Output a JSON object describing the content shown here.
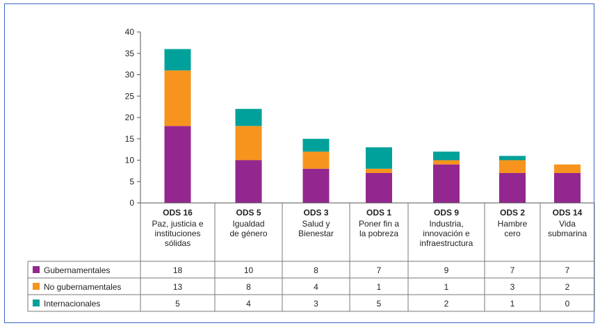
{
  "chart_data": {
    "type": "bar",
    "stacked": true,
    "ylim": [
      0,
      40
    ],
    "yticks": [
      0,
      5,
      10,
      15,
      20,
      25,
      30,
      35,
      40
    ],
    "categories": [
      {
        "code": "ODS 16",
        "name": [
          "Paz, justicia e",
          "instituciones",
          "sólidas"
        ]
      },
      {
        "code": "ODS 5",
        "name": [
          "Igualdad",
          "de género"
        ]
      },
      {
        "code": "ODS 3",
        "name": [
          "Salud y",
          "Bienestar"
        ]
      },
      {
        "code": "ODS 1",
        "name": [
          "Poner fin a",
          "la pobreza"
        ]
      },
      {
        "code": "ODS 9",
        "name": [
          "Industria,",
          "innovación e",
          "infraestructura"
        ]
      },
      {
        "code": "ODS 2",
        "name": [
          "Hambre",
          "cero"
        ]
      },
      {
        "code": "ODS 14",
        "name": [
          "Vida",
          "submarina"
        ]
      }
    ],
    "series": [
      {
        "name": "Gubernamentales",
        "color": "#93278f",
        "values": [
          18,
          10,
          8,
          7,
          9,
          7,
          7
        ]
      },
      {
        "name": "No gubernamentales",
        "color": "#f7941d",
        "values": [
          13,
          8,
          4,
          1,
          1,
          3,
          2
        ]
      },
      {
        "name": "Internacionales",
        "color": "#00a19a",
        "values": [
          5,
          4,
          3,
          5,
          2,
          1,
          0
        ]
      }
    ],
    "grid": false,
    "legend": "table-below"
  }
}
